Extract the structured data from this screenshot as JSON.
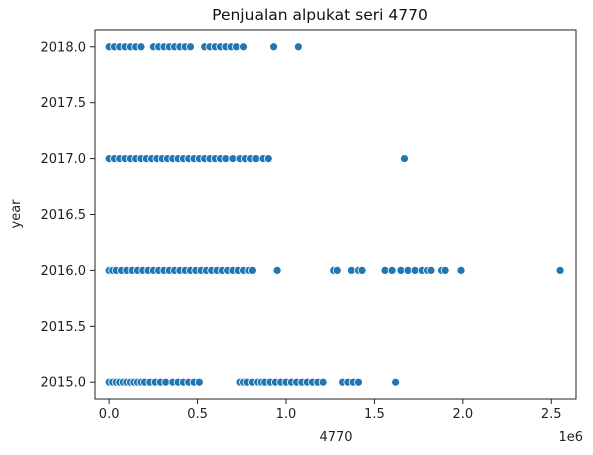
{
  "chart_data": {
    "type": "scatter",
    "title": "Penjualan alpukat seri 4770",
    "xlabel": "4770",
    "ylabel": "year",
    "x_offset_label": "1e6",
    "xlim": [
      -80000,
      2640000
    ],
    "ylim": [
      2014.85,
      2018.15
    ],
    "x_ticks": [
      0,
      500000,
      1000000,
      1500000,
      2000000,
      2500000
    ],
    "x_tick_labels": [
      "0.0",
      "0.5",
      "1.0",
      "1.5",
      "2.0",
      "2.5"
    ],
    "y_ticks": [
      2015.0,
      2015.5,
      2016.0,
      2016.5,
      2017.0,
      2017.5,
      2018.0
    ],
    "y_tick_labels": [
      "2015.0",
      "2015.5",
      "2016.0",
      "2016.5",
      "2017.0",
      "2017.5",
      "2018.0"
    ],
    "grid": false,
    "marker_color": "#1f77b4",
    "marker_edge_color": "#ffffff",
    "series": [
      {
        "points": [
          {
            "x": 0,
            "y": 2015
          },
          {
            "x": 20000,
            "y": 2015
          },
          {
            "x": 40000,
            "y": 2015
          },
          {
            "x": 60000,
            "y": 2015
          },
          {
            "x": 80000,
            "y": 2015
          },
          {
            "x": 100000,
            "y": 2015
          },
          {
            "x": 120000,
            "y": 2015
          },
          {
            "x": 140000,
            "y": 2015
          },
          {
            "x": 160000,
            "y": 2015
          },
          {
            "x": 180000,
            "y": 2015
          },
          {
            "x": 200000,
            "y": 2015
          },
          {
            "x": 230000,
            "y": 2015
          },
          {
            "x": 260000,
            "y": 2015
          },
          {
            "x": 290000,
            "y": 2015
          },
          {
            "x": 320000,
            "y": 2015
          },
          {
            "x": 360000,
            "y": 2015
          },
          {
            "x": 390000,
            "y": 2015
          },
          {
            "x": 420000,
            "y": 2015
          },
          {
            "x": 450000,
            "y": 2015
          },
          {
            "x": 480000,
            "y": 2015
          },
          {
            "x": 510000,
            "y": 2015
          },
          {
            "x": 740000,
            "y": 2015
          },
          {
            "x": 760000,
            "y": 2015
          },
          {
            "x": 780000,
            "y": 2015
          },
          {
            "x": 810000,
            "y": 2015
          },
          {
            "x": 840000,
            "y": 2015
          },
          {
            "x": 860000,
            "y": 2015
          },
          {
            "x": 880000,
            "y": 2015
          },
          {
            "x": 910000,
            "y": 2015
          },
          {
            "x": 940000,
            "y": 2015
          },
          {
            "x": 970000,
            "y": 2015
          },
          {
            "x": 1000000,
            "y": 2015
          },
          {
            "x": 1030000,
            "y": 2015
          },
          {
            "x": 1060000,
            "y": 2015
          },
          {
            "x": 1090000,
            "y": 2015
          },
          {
            "x": 1120000,
            "y": 2015
          },
          {
            "x": 1150000,
            "y": 2015
          },
          {
            "x": 1180000,
            "y": 2015
          },
          {
            "x": 1210000,
            "y": 2015
          },
          {
            "x": 1320000,
            "y": 2015
          },
          {
            "x": 1350000,
            "y": 2015
          },
          {
            "x": 1380000,
            "y": 2015
          },
          {
            "x": 1410000,
            "y": 2015
          },
          {
            "x": 1620000,
            "y": 2015
          },
          {
            "x": 0,
            "y": 2016
          },
          {
            "x": 20000,
            "y": 2016
          },
          {
            "x": 40000,
            "y": 2016
          },
          {
            "x": 70000,
            "y": 2016
          },
          {
            "x": 100000,
            "y": 2016
          },
          {
            "x": 130000,
            "y": 2016
          },
          {
            "x": 160000,
            "y": 2016
          },
          {
            "x": 190000,
            "y": 2016
          },
          {
            "x": 220000,
            "y": 2016
          },
          {
            "x": 250000,
            "y": 2016
          },
          {
            "x": 280000,
            "y": 2016
          },
          {
            "x": 310000,
            "y": 2016
          },
          {
            "x": 340000,
            "y": 2016
          },
          {
            "x": 370000,
            "y": 2016
          },
          {
            "x": 400000,
            "y": 2016
          },
          {
            "x": 430000,
            "y": 2016
          },
          {
            "x": 460000,
            "y": 2016
          },
          {
            "x": 490000,
            "y": 2016
          },
          {
            "x": 520000,
            "y": 2016
          },
          {
            "x": 550000,
            "y": 2016
          },
          {
            "x": 580000,
            "y": 2016
          },
          {
            "x": 610000,
            "y": 2016
          },
          {
            "x": 640000,
            "y": 2016
          },
          {
            "x": 670000,
            "y": 2016
          },
          {
            "x": 700000,
            "y": 2016
          },
          {
            "x": 730000,
            "y": 2016
          },
          {
            "x": 760000,
            "y": 2016
          },
          {
            "x": 790000,
            "y": 2016
          },
          {
            "x": 810000,
            "y": 2016
          },
          {
            "x": 950000,
            "y": 2016
          },
          {
            "x": 1270000,
            "y": 2016
          },
          {
            "x": 1290000,
            "y": 2016
          },
          {
            "x": 1370000,
            "y": 2016
          },
          {
            "x": 1410000,
            "y": 2016
          },
          {
            "x": 1430000,
            "y": 2016
          },
          {
            "x": 1560000,
            "y": 2016
          },
          {
            "x": 1600000,
            "y": 2016
          },
          {
            "x": 1650000,
            "y": 2016
          },
          {
            "x": 1690000,
            "y": 2016
          },
          {
            "x": 1730000,
            "y": 2016
          },
          {
            "x": 1770000,
            "y": 2016
          },
          {
            "x": 1800000,
            "y": 2016
          },
          {
            "x": 1820000,
            "y": 2016
          },
          {
            "x": 1880000,
            "y": 2016
          },
          {
            "x": 1900000,
            "y": 2016
          },
          {
            "x": 1990000,
            "y": 2016
          },
          {
            "x": 2550000,
            "y": 2016
          },
          {
            "x": 0,
            "y": 2017
          },
          {
            "x": 30000,
            "y": 2017
          },
          {
            "x": 60000,
            "y": 2017
          },
          {
            "x": 90000,
            "y": 2017
          },
          {
            "x": 120000,
            "y": 2017
          },
          {
            "x": 150000,
            "y": 2017
          },
          {
            "x": 180000,
            "y": 2017
          },
          {
            "x": 210000,
            "y": 2017
          },
          {
            "x": 240000,
            "y": 2017
          },
          {
            "x": 270000,
            "y": 2017
          },
          {
            "x": 300000,
            "y": 2017
          },
          {
            "x": 330000,
            "y": 2017
          },
          {
            "x": 360000,
            "y": 2017
          },
          {
            "x": 390000,
            "y": 2017
          },
          {
            "x": 420000,
            "y": 2017
          },
          {
            "x": 450000,
            "y": 2017
          },
          {
            "x": 480000,
            "y": 2017
          },
          {
            "x": 510000,
            "y": 2017
          },
          {
            "x": 540000,
            "y": 2017
          },
          {
            "x": 570000,
            "y": 2017
          },
          {
            "x": 600000,
            "y": 2017
          },
          {
            "x": 630000,
            "y": 2017
          },
          {
            "x": 660000,
            "y": 2017
          },
          {
            "x": 700000,
            "y": 2017
          },
          {
            "x": 740000,
            "y": 2017
          },
          {
            "x": 770000,
            "y": 2017
          },
          {
            "x": 800000,
            "y": 2017
          },
          {
            "x": 830000,
            "y": 2017
          },
          {
            "x": 870000,
            "y": 2017
          },
          {
            "x": 900000,
            "y": 2017
          },
          {
            "x": 1670000,
            "y": 2017
          },
          {
            "x": 0,
            "y": 2018
          },
          {
            "x": 30000,
            "y": 2018
          },
          {
            "x": 60000,
            "y": 2018
          },
          {
            "x": 90000,
            "y": 2018
          },
          {
            "x": 120000,
            "y": 2018
          },
          {
            "x": 150000,
            "y": 2018
          },
          {
            "x": 180000,
            "y": 2018
          },
          {
            "x": 250000,
            "y": 2018
          },
          {
            "x": 280000,
            "y": 2018
          },
          {
            "x": 310000,
            "y": 2018
          },
          {
            "x": 340000,
            "y": 2018
          },
          {
            "x": 370000,
            "y": 2018
          },
          {
            "x": 400000,
            "y": 2018
          },
          {
            "x": 430000,
            "y": 2018
          },
          {
            "x": 460000,
            "y": 2018
          },
          {
            "x": 540000,
            "y": 2018
          },
          {
            "x": 570000,
            "y": 2018
          },
          {
            "x": 600000,
            "y": 2018
          },
          {
            "x": 630000,
            "y": 2018
          },
          {
            "x": 660000,
            "y": 2018
          },
          {
            "x": 690000,
            "y": 2018
          },
          {
            "x": 720000,
            "y": 2018
          },
          {
            "x": 760000,
            "y": 2018
          },
          {
            "x": 930000,
            "y": 2018
          },
          {
            "x": 1070000,
            "y": 2018
          }
        ]
      }
    ]
  }
}
